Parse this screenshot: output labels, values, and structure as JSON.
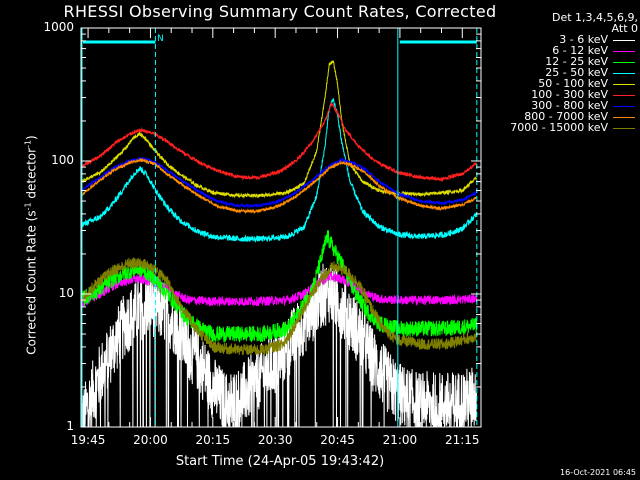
{
  "title": "RHESSI Observing Summary Count Rates, Corrected",
  "detector_info": [
    "Det 1,3,4,5,6,9,",
    "Att 0"
  ],
  "ylabel_main": "Corrected Count Rate (s",
  "ylabel_sup1": "-1",
  "ylabel_mid": " detector",
  "ylabel_sup2": "-1",
  "ylabel_end": ")",
  "xlabel": "Start Time (24-Apr-05 19:43:42)",
  "timestamp": "16-Oct-2021 06:45",
  "flag_label": "N",
  "colors": {
    "background": "#000000",
    "axes": "#ffffff",
    "flag": "#00ffff"
  },
  "chart_data": {
    "type": "line",
    "yscale": "log",
    "ylim": [
      1,
      1000
    ],
    "xlim": [
      -1.7,
      94.5
    ],
    "x_unit": "minutes after 19:45 UT on 24-Apr-05",
    "yticks": [
      {
        "value": 1,
        "label": "1"
      },
      {
        "value": 10,
        "label": "10"
      },
      {
        "value": 100,
        "label": "100"
      },
      {
        "value": 1000,
        "label": "1000"
      }
    ],
    "xticks": [
      {
        "value": 0,
        "label": "19:45"
      },
      {
        "value": 15,
        "label": "20:00"
      },
      {
        "value": 30,
        "label": "20:15"
      },
      {
        "value": 45,
        "label": "20:30"
      },
      {
        "value": 60,
        "label": "20:45"
      },
      {
        "value": 75,
        "label": "21:00"
      },
      {
        "value": 90,
        "label": "21:15"
      }
    ],
    "minor_xtick_step": 5,
    "night_intervals": [
      [
        -1.7,
        16.2
      ],
      [
        74.5,
        93.5
      ]
    ],
    "dashed_vlines": [
      16.2,
      93.5
    ],
    "solid_vlines": [
      74.5
    ],
    "series": [
      {
        "name": "3 - 6 keV",
        "color": "#ffffff",
        "noise": 0.35,
        "points": [
          [
            -1.7,
            1.0
          ],
          [
            0,
            1.5
          ],
          [
            3,
            2.5
          ],
          [
            6,
            4.0
          ],
          [
            9,
            6.0
          ],
          [
            12,
            7.5
          ],
          [
            15,
            8.5
          ],
          [
            18,
            7.5
          ],
          [
            21,
            6.0
          ],
          [
            24,
            4.0
          ],
          [
            27,
            3.0
          ],
          [
            30,
            2.0
          ],
          [
            33,
            1.5
          ],
          [
            36,
            1.6
          ],
          [
            39,
            2.0
          ],
          [
            42,
            2.5
          ],
          [
            45,
            3.0
          ],
          [
            48,
            4.0
          ],
          [
            51,
            5.5
          ],
          [
            54,
            7.5
          ],
          [
            56,
            9.5
          ],
          [
            58,
            10.5
          ],
          [
            60,
            9.0
          ],
          [
            63,
            6.5
          ],
          [
            66,
            4.5
          ],
          [
            69,
            3.0
          ],
          [
            72,
            2.2
          ],
          [
            74.5,
            1.8
          ],
          [
            77,
            1.6
          ],
          [
            80,
            1.5
          ],
          [
            84,
            1.5
          ],
          [
            88,
            1.5
          ],
          [
            91,
            1.6
          ],
          [
            93.5,
            1.7
          ]
        ]
      },
      {
        "name": "6 - 12 keV",
        "color": "#ff00ff",
        "noise": 0.08,
        "points": [
          [
            -1.7,
            8.5
          ],
          [
            3,
            10.0
          ],
          [
            6,
            11.5
          ],
          [
            9,
            12.5
          ],
          [
            12,
            13.0
          ],
          [
            15,
            12.5
          ],
          [
            18,
            11.5
          ],
          [
            21,
            10.0
          ],
          [
            24,
            9.0
          ],
          [
            30,
            8.8
          ],
          [
            40,
            8.8
          ],
          [
            48,
            9.0
          ],
          [
            52,
            10.0
          ],
          [
            55,
            12.0
          ],
          [
            58,
            13.5
          ],
          [
            61,
            13.0
          ],
          [
            64,
            11.5
          ],
          [
            67,
            10.0
          ],
          [
            70,
            9.2
          ],
          [
            74.5,
            9.0
          ],
          [
            85,
            9.0
          ],
          [
            93.5,
            9.2
          ]
        ]
      },
      {
        "name": "12 - 25 keV",
        "color": "#00ff00",
        "noise": 0.14,
        "points": [
          [
            -1.7,
            9.0
          ],
          [
            3,
            11.0
          ],
          [
            6,
            13.0
          ],
          [
            9,
            14.5
          ],
          [
            12,
            15.5
          ],
          [
            15,
            14.0
          ],
          [
            18,
            11.0
          ],
          [
            21,
            8.5
          ],
          [
            24,
            6.5
          ],
          [
            27,
            5.5
          ],
          [
            30,
            5.0
          ],
          [
            36,
            5.0
          ],
          [
            42,
            5.0
          ],
          [
            48,
            5.5
          ],
          [
            51,
            7.5
          ],
          [
            54,
            11.0
          ],
          [
            56,
            18.0
          ],
          [
            57.5,
            27.0
          ],
          [
            59,
            22.0
          ],
          [
            61,
            17.0
          ],
          [
            64,
            10.5
          ],
          [
            67,
            7.5
          ],
          [
            70,
            6.0
          ],
          [
            74.5,
            5.5
          ],
          [
            80,
            5.5
          ],
          [
            86,
            5.5
          ],
          [
            93.5,
            5.8
          ]
        ]
      },
      {
        "name": "25 - 50 keV",
        "color": "#00ffff",
        "noise": 0.05,
        "points": [
          [
            -1.7,
            33
          ],
          [
            3,
            38
          ],
          [
            6,
            48
          ],
          [
            9,
            65
          ],
          [
            11,
            80
          ],
          [
            12.5,
            88
          ],
          [
            14,
            80
          ],
          [
            16,
            62
          ],
          [
            19,
            45
          ],
          [
            22,
            36
          ],
          [
            26,
            30
          ],
          [
            30,
            27
          ],
          [
            36,
            26
          ],
          [
            42,
            26
          ],
          [
            48,
            27
          ],
          [
            52,
            32
          ],
          [
            55,
            55
          ],
          [
            57,
            130
          ],
          [
            58,
            250
          ],
          [
            59,
            290
          ],
          [
            60,
            220
          ],
          [
            61,
            140
          ],
          [
            63,
            70
          ],
          [
            66,
            42
          ],
          [
            70,
            32
          ],
          [
            74.5,
            28
          ],
          [
            80,
            27
          ],
          [
            86,
            28
          ],
          [
            90,
            31
          ],
          [
            93.5,
            40
          ]
        ]
      },
      {
        "name": "50 - 100 keV",
        "color": "#dddd00",
        "noise": 0.03,
        "points": [
          [
            -1.7,
            70
          ],
          [
            3,
            82
          ],
          [
            6,
            100
          ],
          [
            9,
            125
          ],
          [
            11,
            150
          ],
          [
            12.5,
            160
          ],
          [
            14,
            145
          ],
          [
            16,
            120
          ],
          [
            19,
            95
          ],
          [
            22,
            80
          ],
          [
            26,
            66
          ],
          [
            30,
            58
          ],
          [
            36,
            55
          ],
          [
            42,
            55
          ],
          [
            48,
            58
          ],
          [
            52,
            68
          ],
          [
            55,
            120
          ],
          [
            57,
            300
          ],
          [
            58,
            530
          ],
          [
            59,
            560
          ],
          [
            60,
            380
          ],
          [
            61,
            200
          ],
          [
            63,
            95
          ],
          [
            66,
            70
          ],
          [
            70,
            60
          ],
          [
            74.5,
            57
          ],
          [
            80,
            56
          ],
          [
            86,
            58
          ],
          [
            90,
            60
          ],
          [
            93.5,
            75
          ]
        ]
      },
      {
        "name": "100 - 300 keV",
        "color": "#ff2020",
        "noise": 0.03,
        "points": [
          [
            -1.7,
            90
          ],
          [
            3,
            110
          ],
          [
            7,
            140
          ],
          [
            11,
            165
          ],
          [
            13,
            170
          ],
          [
            16,
            160
          ],
          [
            19,
            140
          ],
          [
            23,
            115
          ],
          [
            27,
            97
          ],
          [
            31,
            85
          ],
          [
            36,
            76
          ],
          [
            41,
            75
          ],
          [
            46,
            83
          ],
          [
            50,
            100
          ],
          [
            54,
            140
          ],
          [
            57,
            200
          ],
          [
            58.5,
            270
          ],
          [
            60,
            230
          ],
          [
            62,
            170
          ],
          [
            65,
            130
          ],
          [
            69,
            100
          ],
          [
            74.5,
            82
          ],
          [
            80,
            75
          ],
          [
            85,
            73
          ],
          [
            90,
            80
          ],
          [
            93.5,
            96
          ]
        ]
      },
      {
        "name": "300 - 800 keV",
        "color": "#0000ff",
        "noise": 0.025,
        "points": [
          [
            -1.7,
            60
          ],
          [
            2,
            72
          ],
          [
            6,
            88
          ],
          [
            10,
            100
          ],
          [
            13,
            105
          ],
          [
            16,
            98
          ],
          [
            19,
            85
          ],
          [
            23,
            70
          ],
          [
            27,
            58
          ],
          [
            31,
            50
          ],
          [
            36,
            46
          ],
          [
            41,
            46
          ],
          [
            46,
            50
          ],
          [
            50,
            58
          ],
          [
            54,
            72
          ],
          [
            58,
            92
          ],
          [
            61,
            102
          ],
          [
            64,
            96
          ],
          [
            67,
            85
          ],
          [
            70,
            70
          ],
          [
            74.5,
            57
          ],
          [
            80,
            50
          ],
          [
            85,
            48
          ],
          [
            90,
            51
          ],
          [
            93.5,
            58
          ]
        ]
      },
      {
        "name": "800 - 7000 keV",
        "color": "#ff8c00",
        "noise": 0.025,
        "points": [
          [
            -1.7,
            55
          ],
          [
            2,
            68
          ],
          [
            6,
            85
          ],
          [
            10,
            97
          ],
          [
            13,
            102
          ],
          [
            16,
            95
          ],
          [
            19,
            80
          ],
          [
            23,
            65
          ],
          [
            27,
            54
          ],
          [
            31,
            46
          ],
          [
            36,
            42
          ],
          [
            41,
            42
          ],
          [
            46,
            46
          ],
          [
            50,
            54
          ],
          [
            54,
            68
          ],
          [
            58,
            88
          ],
          [
            61,
            98
          ],
          [
            64,
            92
          ],
          [
            67,
            80
          ],
          [
            70,
            65
          ],
          [
            74.5,
            53
          ],
          [
            80,
            46
          ],
          [
            85,
            44
          ],
          [
            90,
            47
          ],
          [
            93.5,
            53
          ]
        ]
      },
      {
        "name": "7000 - 15000 keV",
        "color": "#808000",
        "noise": 0.1,
        "points": [
          [
            -1.7,
            9.0
          ],
          [
            2,
            12.0
          ],
          [
            6,
            15.0
          ],
          [
            10,
            17.0
          ],
          [
            13,
            17.0
          ],
          [
            16,
            15.5
          ],
          [
            19,
            12.5
          ],
          [
            22,
            8.5
          ],
          [
            26,
            5.5
          ],
          [
            30,
            4.0
          ],
          [
            36,
            3.8
          ],
          [
            42,
            3.8
          ],
          [
            47,
            4.2
          ],
          [
            50,
            6.0
          ],
          [
            53,
            9.0
          ],
          [
            56,
            13.0
          ],
          [
            59,
            16.0
          ],
          [
            62,
            15.0
          ],
          [
            65,
            12.0
          ],
          [
            68,
            8.0
          ],
          [
            71,
            5.5
          ],
          [
            74.5,
            4.5
          ],
          [
            80,
            4.2
          ],
          [
            86,
            4.2
          ],
          [
            93.5,
            4.8
          ]
        ]
      }
    ]
  }
}
